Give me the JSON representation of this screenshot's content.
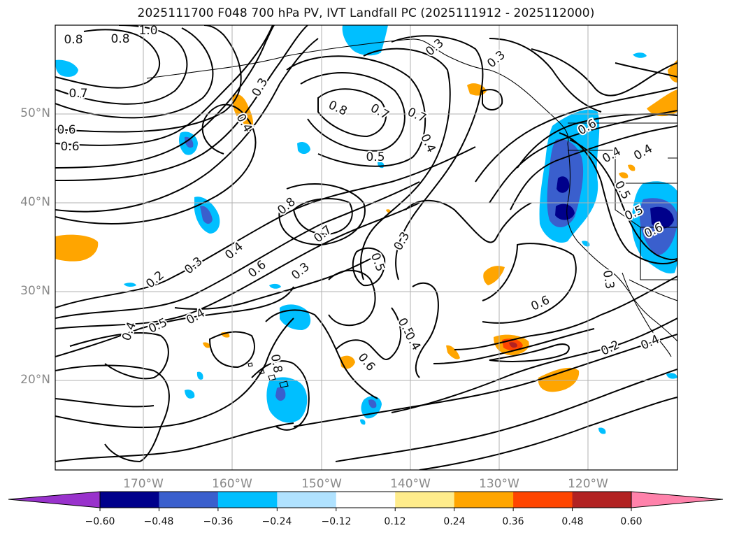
{
  "title": "2025111700 F048 700 hPa PV, IVT Landfall PC (2025111912 - 2025112000)",
  "map": {
    "lat_labels": [
      "50°N",
      "40°N",
      "30°N",
      "20°N"
    ],
    "lon_labels": [
      "170°W",
      "160°W",
      "150°W",
      "140°W",
      "130°W",
      "120°W"
    ],
    "ocean_color": "#ffffff",
    "grid_color": "#b0b0b0",
    "contour_color": "#000000",
    "contour_labels": [
      "0.8",
      "0.8",
      "1.0",
      "0.7",
      "0.6",
      "0.7",
      "0.6",
      "0.5",
      "0.3",
      "0.4",
      "0.8",
      "0.7",
      "0.4",
      "0.3",
      "0.3",
      "0.8",
      "0.7",
      "0.2",
      "0.3",
      "0.4",
      "0.6",
      "0.3",
      "0.5",
      "0.3",
      "0.6",
      "0.5",
      "0.4",
      "0.4",
      "0.5",
      "0.4",
      "0.6",
      "0.8",
      "0.6",
      "0.4",
      "0.4",
      "0.5",
      "0.5",
      "0.6",
      "0.3",
      "0.2",
      "0.4"
    ]
  },
  "colorbar": {
    "ticks": [
      "−0.60",
      "−0.48",
      "−0.36",
      "−0.24",
      "−0.12",
      "0.12",
      "0.24",
      "0.36",
      "0.48",
      "0.60"
    ],
    "colors": [
      "#9932cc",
      "#00008b",
      "#3a5fcd",
      "#00bfff",
      "#b0e2ff",
      "#ffffff",
      "#ffec8b",
      "#ffa500",
      "#ff4500",
      "#b22222",
      "#ff82ab"
    ]
  }
}
